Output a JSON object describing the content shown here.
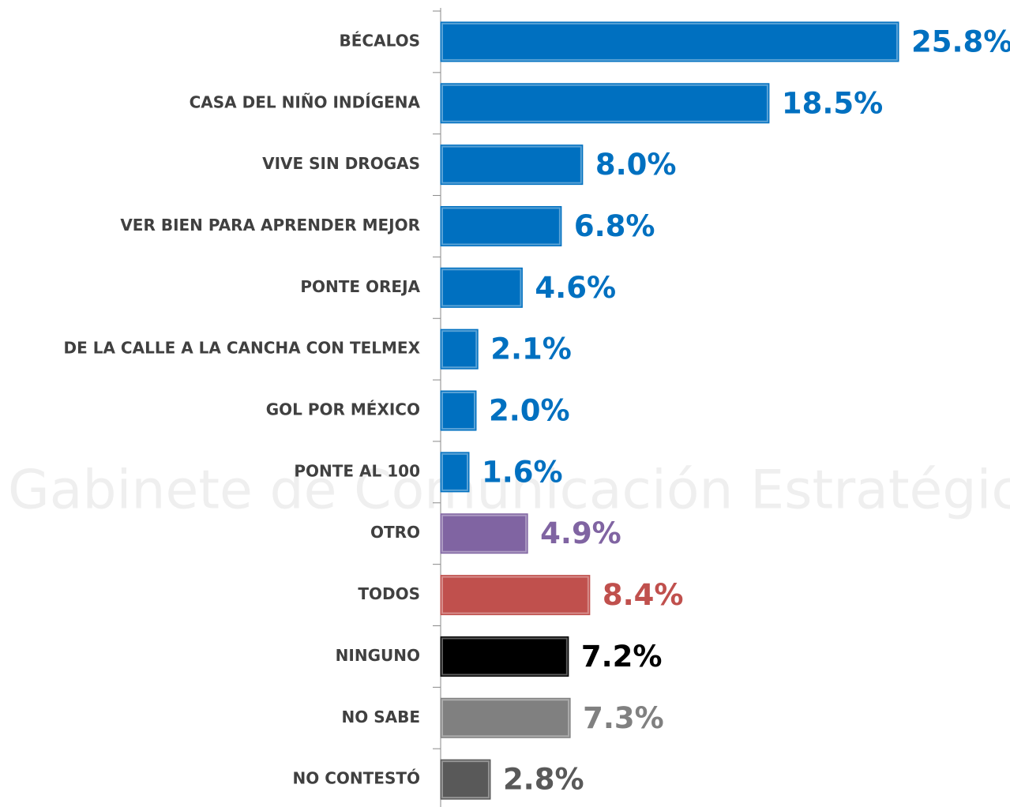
{
  "watermark": "Gabinete de Comunicación Estratégica",
  "chart_data": {
    "type": "bar",
    "orientation": "horizontal",
    "categories": [
      "BÉCALOS",
      "CASA DEL NIÑO INDÍGENA",
      "VIVE SIN DROGAS",
      "VER BIEN PARA APRENDER MEJOR",
      "PONTE OREJA",
      "DE LA CALLE A LA CANCHA CON TELMEX",
      "GOL POR MÉXICO",
      "PONTE AL 100",
      "OTRO",
      "TODOS",
      "NINGUNO",
      "NO SABE",
      "NO CONTESTÓ"
    ],
    "values": [
      25.8,
      18.5,
      8.0,
      6.8,
      4.6,
      2.1,
      2.0,
      1.6,
      4.9,
      8.4,
      7.2,
      7.3,
      2.8
    ],
    "value_labels": [
      "25.8%",
      "18.5%",
      "8.0%",
      "6.8%",
      "4.6%",
      "2.1%",
      "2.0%",
      "1.6%",
      "4.9%",
      "8.4%",
      "7.2%",
      "7.3%",
      "2.8%"
    ],
    "colors": [
      "#0070c0",
      "#0070c0",
      "#0070c0",
      "#0070c0",
      "#0070c0",
      "#0070c0",
      "#0070c0",
      "#0070c0",
      "#8064a2",
      "#c0504d",
      "#000000",
      "#808080",
      "#595959"
    ]
  }
}
